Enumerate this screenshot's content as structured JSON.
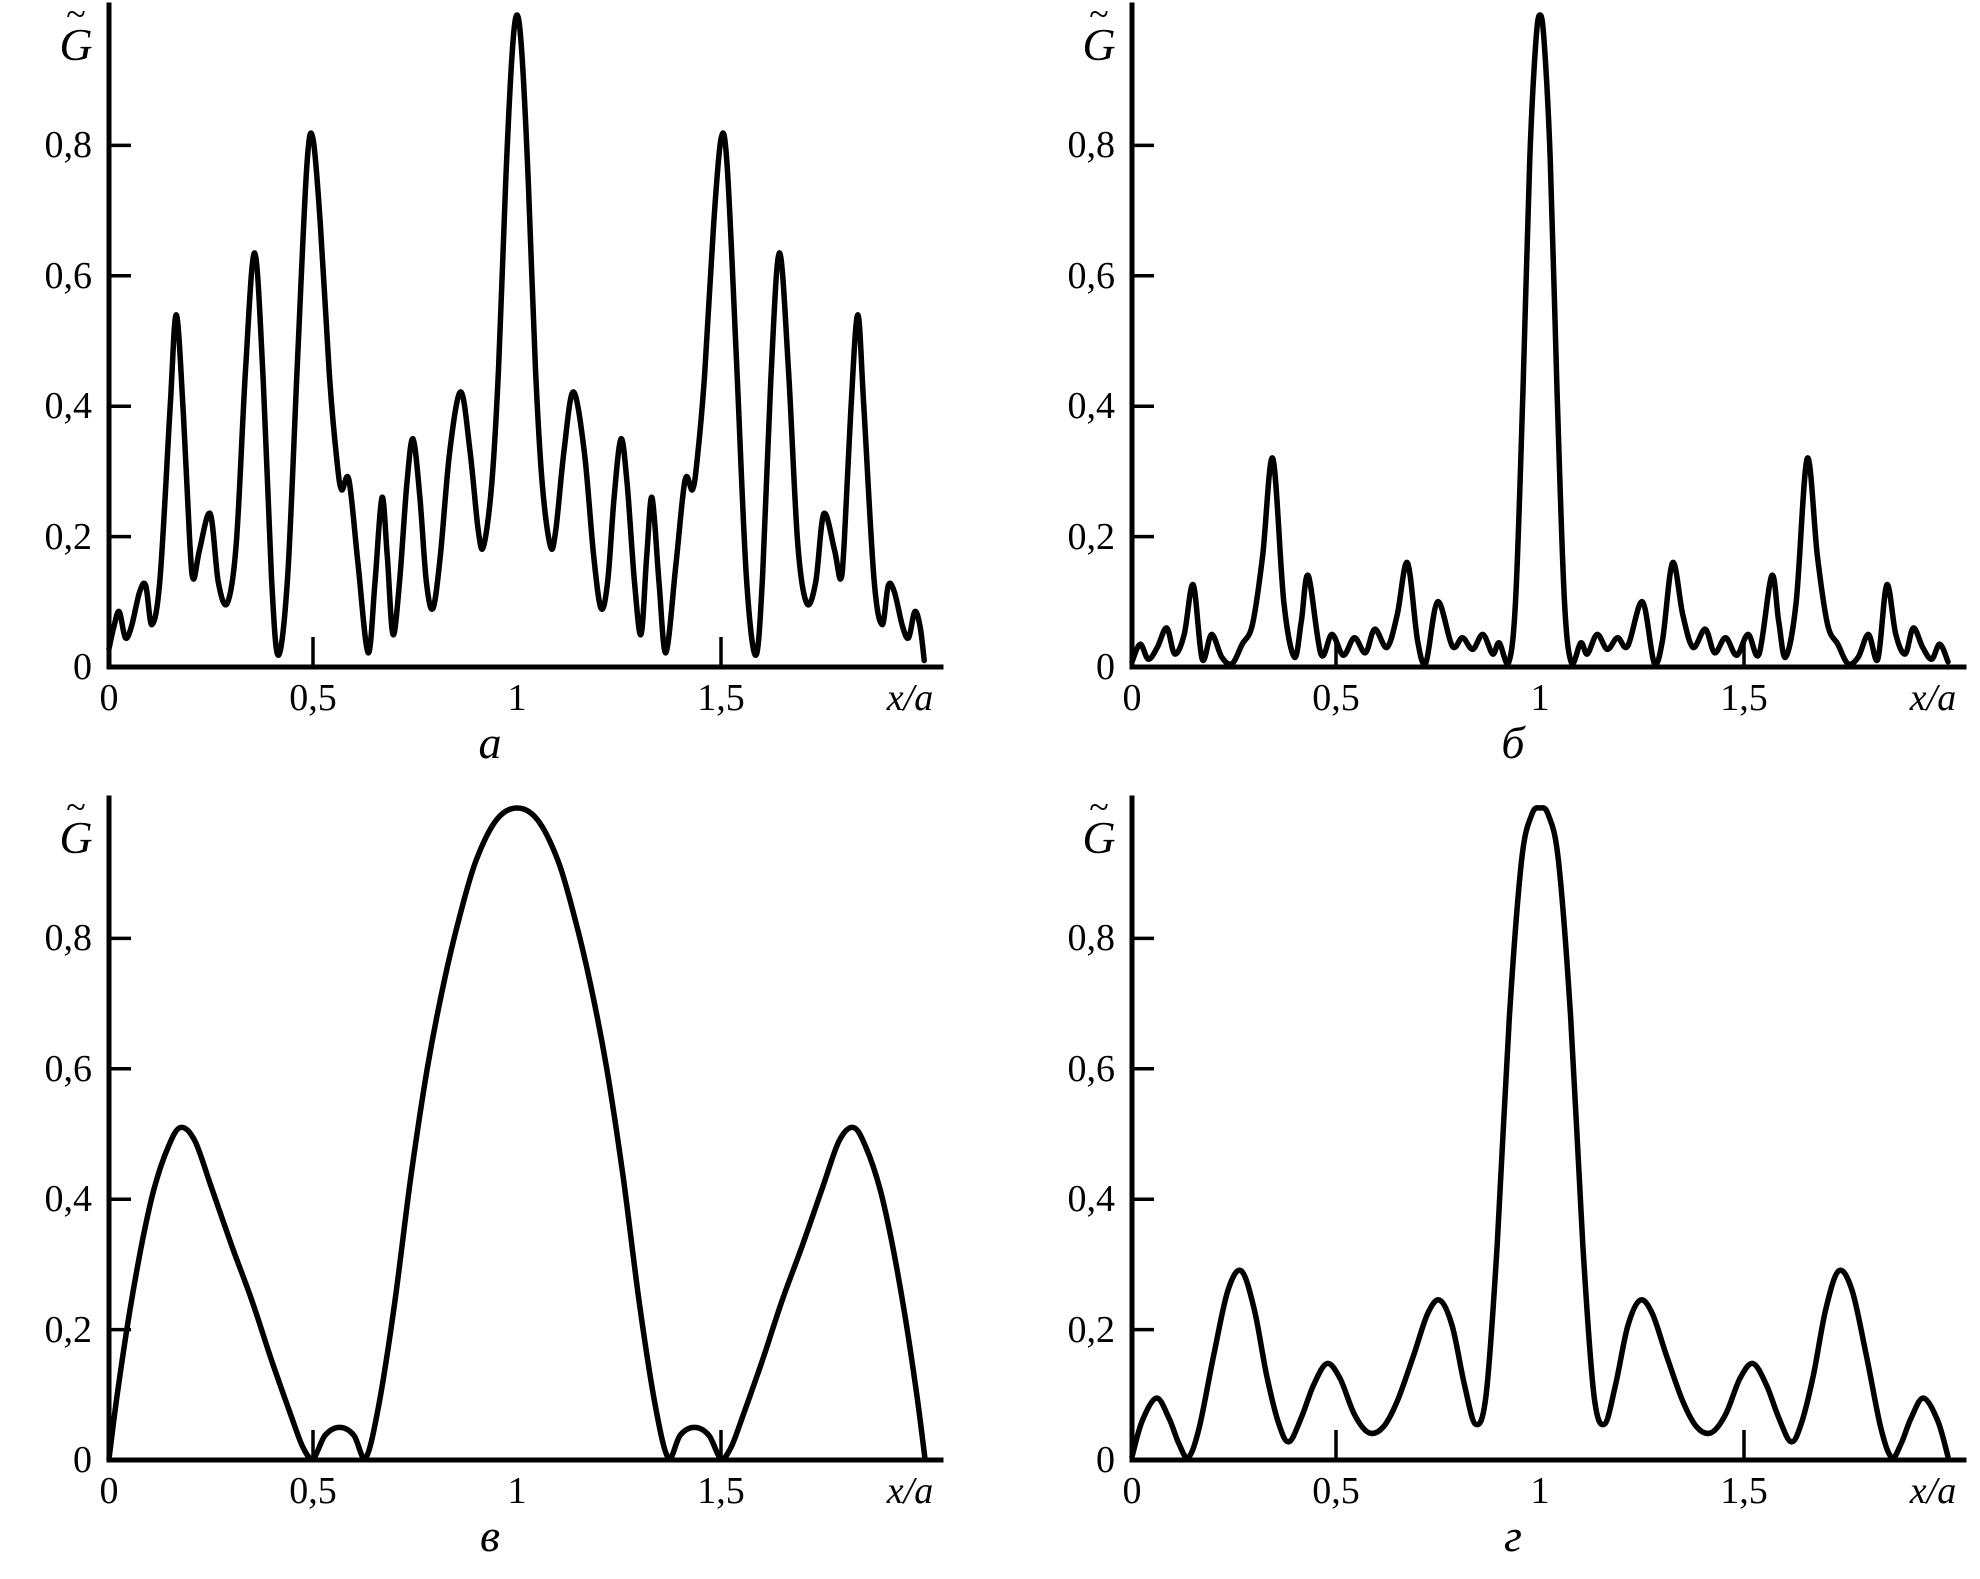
{
  "figure": {
    "background_color": "#ffffff",
    "stroke_color": "#000000",
    "y_axis": {
      "letter": "G",
      "tilde_glyph": "~",
      "tick_labels": [
        "0,2",
        "0,4",
        "0,6",
        "0,8"
      ],
      "zero_label": "0"
    },
    "x_axis": {
      "axis_label": "x/a",
      "tick_labels": [
        "0",
        "0,5",
        "1",
        "1,5"
      ],
      "tick_values": [
        0,
        0.5,
        1,
        1.5
      ]
    }
  },
  "chart_data": [
    {
      "type": "line",
      "caption": "а",
      "xlabel": "x/a",
      "ylabel": "G̃",
      "xlim": [
        0,
        2.04
      ],
      "ylim": [
        0,
        1.02
      ],
      "x_ticks": [
        0,
        0.5,
        1,
        1.5
      ],
      "y_ticks": [
        0.2,
        0.4,
        0.6,
        0.8
      ],
      "grid": false,
      "legend": null,
      "points": [
        [
          0,
          0.028
        ],
        [
          0.012,
          0.062
        ],
        [
          0.025,
          0.085
        ],
        [
          0.04,
          0.045
        ],
        [
          0.055,
          0.062
        ],
        [
          0.075,
          0.115
        ],
        [
          0.09,
          0.125
        ],
        [
          0.105,
          0.065
        ],
        [
          0.125,
          0.135
        ],
        [
          0.15,
          0.4
        ],
        [
          0.165,
          0.54
        ],
        [
          0.182,
          0.39
        ],
        [
          0.198,
          0.19
        ],
        [
          0.207,
          0.135
        ],
        [
          0.222,
          0.18
        ],
        [
          0.248,
          0.235
        ],
        [
          0.268,
          0.13
        ],
        [
          0.29,
          0.098
        ],
        [
          0.312,
          0.19
        ],
        [
          0.335,
          0.46
        ],
        [
          0.357,
          0.635
        ],
        [
          0.378,
          0.44
        ],
        [
          0.398,
          0.14
        ],
        [
          0.415,
          0.018
        ],
        [
          0.438,
          0.14
        ],
        [
          0.462,
          0.47
        ],
        [
          0.485,
          0.77
        ],
        [
          0.5,
          0.81
        ],
        [
          0.518,
          0.68
        ],
        [
          0.54,
          0.45
        ],
        [
          0.558,
          0.32
        ],
        [
          0.57,
          0.272
        ],
        [
          0.588,
          0.287
        ],
        [
          0.61,
          0.16
        ],
        [
          0.635,
          0.022
        ],
        [
          0.652,
          0.13
        ],
        [
          0.669,
          0.26
        ],
        [
          0.682,
          0.17
        ],
        [
          0.696,
          0.05
        ],
        [
          0.712,
          0.13
        ],
        [
          0.73,
          0.28
        ],
        [
          0.745,
          0.35
        ],
        [
          0.762,
          0.26
        ],
        [
          0.778,
          0.13
        ],
        [
          0.794,
          0.09
        ],
        [
          0.812,
          0.17
        ],
        [
          0.835,
          0.33
        ],
        [
          0.862,
          0.422
        ],
        [
          0.885,
          0.33
        ],
        [
          0.905,
          0.21
        ],
        [
          0.918,
          0.185
        ],
        [
          0.938,
          0.28
        ],
        [
          0.955,
          0.46
        ],
        [
          0.972,
          0.74
        ],
        [
          0.988,
          0.94
        ],
        [
          1,
          1
        ],
        [
          1.012,
          0.94
        ],
        [
          1.028,
          0.74
        ],
        [
          1.045,
          0.46
        ],
        [
          1.062,
          0.28
        ],
        [
          1.082,
          0.185
        ],
        [
          1.095,
          0.21
        ],
        [
          1.115,
          0.33
        ],
        [
          1.138,
          0.422
        ],
        [
          1.165,
          0.33
        ],
        [
          1.188,
          0.17
        ],
        [
          1.206,
          0.09
        ],
        [
          1.222,
          0.13
        ],
        [
          1.238,
          0.26
        ],
        [
          1.255,
          0.35
        ],
        [
          1.27,
          0.28
        ],
        [
          1.288,
          0.13
        ],
        [
          1.304,
          0.05
        ],
        [
          1.318,
          0.17
        ],
        [
          1.331,
          0.26
        ],
        [
          1.348,
          0.13
        ],
        [
          1.365,
          0.022
        ],
        [
          1.39,
          0.16
        ],
        [
          1.412,
          0.287
        ],
        [
          1.43,
          0.272
        ],
        [
          1.442,
          0.32
        ],
        [
          1.46,
          0.45
        ],
        [
          1.482,
          0.68
        ],
        [
          1.5,
          0.81
        ],
        [
          1.515,
          0.77
        ],
        [
          1.538,
          0.47
        ],
        [
          1.562,
          0.14
        ],
        [
          1.585,
          0.018
        ],
        [
          1.602,
          0.14
        ],
        [
          1.622,
          0.44
        ],
        [
          1.643,
          0.635
        ],
        [
          1.665,
          0.46
        ],
        [
          1.688,
          0.19
        ],
        [
          1.71,
          0.098
        ],
        [
          1.732,
          0.13
        ],
        [
          1.752,
          0.235
        ],
        [
          1.778,
          0.18
        ],
        [
          1.793,
          0.135
        ],
        [
          1.802,
          0.19
        ],
        [
          1.818,
          0.39
        ],
        [
          1.835,
          0.54
        ],
        [
          1.85,
          0.4
        ],
        [
          1.875,
          0.135
        ],
        [
          1.895,
          0.065
        ],
        [
          1.91,
          0.125
        ],
        [
          1.925,
          0.115
        ],
        [
          1.945,
          0.062
        ],
        [
          1.96,
          0.045
        ],
        [
          1.975,
          0.085
        ],
        [
          1.988,
          0.062
        ],
        [
          1.998,
          0.01
        ]
      ]
    },
    {
      "type": "line",
      "caption": "б",
      "xlabel": "x/a",
      "ylabel": "G̃",
      "xlim": [
        0,
        2.04
      ],
      "ylim": [
        0,
        1.02
      ],
      "x_ticks": [
        0,
        0.5,
        1,
        1.5
      ],
      "y_ticks": [
        0.2,
        0.4,
        0.6,
        0.8
      ],
      "grid": false,
      "legend": null,
      "points": [
        [
          0,
          0.008
        ],
        [
          0.02,
          0.035
        ],
        [
          0.04,
          0.012
        ],
        [
          0.062,
          0.03
        ],
        [
          0.085,
          0.06
        ],
        [
          0.105,
          0.02
        ],
        [
          0.128,
          0.05
        ],
        [
          0.15,
          0.126
        ],
        [
          0.172,
          0.012
        ],
        [
          0.195,
          0.05
        ],
        [
          0.22,
          0.015
        ],
        [
          0.245,
          0.005
        ],
        [
          0.27,
          0.035
        ],
        [
          0.295,
          0.065
        ],
        [
          0.32,
          0.17
        ],
        [
          0.345,
          0.32
        ],
        [
          0.372,
          0.1
        ],
        [
          0.398,
          0.015
        ],
        [
          0.415,
          0.07
        ],
        [
          0.432,
          0.14
        ],
        [
          0.463,
          0.02
        ],
        [
          0.49,
          0.05
        ],
        [
          0.518,
          0.018
        ],
        [
          0.545,
          0.045
        ],
        [
          0.572,
          0.022
        ],
        [
          0.595,
          0.058
        ],
        [
          0.625,
          0.03
        ],
        [
          0.65,
          0.08
        ],
        [
          0.675,
          0.16
        ],
        [
          0.7,
          0.04
        ],
        [
          0.72,
          0.006
        ],
        [
          0.749,
          0.1
        ],
        [
          0.785,
          0.032
        ],
        [
          0.81,
          0.045
        ],
        [
          0.835,
          0.027
        ],
        [
          0.86,
          0.05
        ],
        [
          0.884,
          0.02
        ],
        [
          0.9,
          0.037
        ],
        [
          0.922,
          0.005
        ],
        [
          0.94,
          0.1
        ],
        [
          0.958,
          0.42
        ],
        [
          0.975,
          0.78
        ],
        [
          0.99,
          0.96
        ],
        [
          1,
          1
        ],
        [
          1.01,
          0.96
        ],
        [
          1.025,
          0.78
        ],
        [
          1.042,
          0.42
        ],
        [
          1.06,
          0.1
        ],
        [
          1.078,
          0.005
        ],
        [
          1.1,
          0.037
        ],
        [
          1.116,
          0.02
        ],
        [
          1.14,
          0.05
        ],
        [
          1.165,
          0.027
        ],
        [
          1.19,
          0.045
        ],
        [
          1.215,
          0.032
        ],
        [
          1.251,
          0.1
        ],
        [
          1.28,
          0.006
        ],
        [
          1.3,
          0.04
        ],
        [
          1.325,
          0.16
        ],
        [
          1.35,
          0.08
        ],
        [
          1.375,
          0.03
        ],
        [
          1.405,
          0.058
        ],
        [
          1.428,
          0.022
        ],
        [
          1.455,
          0.045
        ],
        [
          1.482,
          0.018
        ],
        [
          1.51,
          0.05
        ],
        [
          1.537,
          0.02
        ],
        [
          1.568,
          0.14
        ],
        [
          1.585,
          0.07
        ],
        [
          1.602,
          0.015
        ],
        [
          1.628,
          0.1
        ],
        [
          1.655,
          0.32
        ],
        [
          1.68,
          0.17
        ],
        [
          1.705,
          0.065
        ],
        [
          1.73,
          0.035
        ],
        [
          1.755,
          0.005
        ],
        [
          1.78,
          0.015
        ],
        [
          1.805,
          0.05
        ],
        [
          1.828,
          0.012
        ],
        [
          1.85,
          0.126
        ],
        [
          1.872,
          0.05
        ],
        [
          1.895,
          0.02
        ],
        [
          1.915,
          0.06
        ],
        [
          1.938,
          0.03
        ],
        [
          1.96,
          0.012
        ],
        [
          1.98,
          0.035
        ],
        [
          2,
          0.008
        ]
      ]
    },
    {
      "type": "line",
      "caption": "в",
      "xlabel": "x/a",
      "ylabel": "G̃",
      "xlim": [
        0,
        2.04
      ],
      "ylim": [
        0,
        1.02
      ],
      "x_ticks": [
        0,
        0.5,
        1,
        1.5
      ],
      "y_ticks": [
        0.2,
        0.4,
        0.6,
        0.8
      ],
      "grid": false,
      "legend": null,
      "points": [
        [
          0,
          0.002
        ],
        [
          0.02,
          0.1
        ],
        [
          0.05,
          0.225
        ],
        [
          0.08,
          0.33
        ],
        [
          0.11,
          0.415
        ],
        [
          0.145,
          0.48
        ],
        [
          0.175,
          0.51
        ],
        [
          0.21,
          0.49
        ],
        [
          0.25,
          0.42
        ],
        [
          0.3,
          0.33
        ],
        [
          0.35,
          0.245
        ],
        [
          0.4,
          0.15
        ],
        [
          0.445,
          0.07
        ],
        [
          0.475,
          0.02
        ],
        [
          0.5,
          0.002
        ],
        [
          0.53,
          0.038
        ],
        [
          0.565,
          0.05
        ],
        [
          0.6,
          0.038
        ],
        [
          0.628,
          0.002
        ],
        [
          0.66,
          0.08
        ],
        [
          0.7,
          0.24
        ],
        [
          0.74,
          0.435
        ],
        [
          0.78,
          0.6
        ],
        [
          0.82,
          0.73
        ],
        [
          0.86,
          0.835
        ],
        [
          0.9,
          0.92
        ],
        [
          0.95,
          0.982
        ],
        [
          1,
          1
        ],
        [
          1.05,
          0.982
        ],
        [
          1.1,
          0.92
        ],
        [
          1.14,
          0.835
        ],
        [
          1.18,
          0.73
        ],
        [
          1.22,
          0.6
        ],
        [
          1.26,
          0.435
        ],
        [
          1.3,
          0.24
        ],
        [
          1.34,
          0.08
        ],
        [
          1.372,
          0.002
        ],
        [
          1.4,
          0.038
        ],
        [
          1.435,
          0.05
        ],
        [
          1.47,
          0.038
        ],
        [
          1.5,
          0.002
        ],
        [
          1.525,
          0.02
        ],
        [
          1.555,
          0.07
        ],
        [
          1.6,
          0.15
        ],
        [
          1.65,
          0.245
        ],
        [
          1.7,
          0.33
        ],
        [
          1.75,
          0.42
        ],
        [
          1.79,
          0.49
        ],
        [
          1.825,
          0.51
        ],
        [
          1.855,
          0.48
        ],
        [
          1.89,
          0.415
        ],
        [
          1.92,
          0.33
        ],
        [
          1.95,
          0.225
        ],
        [
          1.98,
          0.1
        ],
        [
          2,
          0.002
        ]
      ]
    },
    {
      "type": "line",
      "caption": "г",
      "xlabel": "x/a",
      "ylabel": "G̃",
      "xlim": [
        0,
        2.04
      ],
      "ylim": [
        0,
        1.02
      ],
      "x_ticks": [
        0,
        0.5,
        1,
        1.5
      ],
      "y_ticks": [
        0.2,
        0.4,
        0.6,
        0.8
      ],
      "grid": false,
      "legend": null,
      "points": [
        [
          0,
          0.005
        ],
        [
          0.025,
          0.06
        ],
        [
          0.06,
          0.095
        ],
        [
          0.09,
          0.065
        ],
        [
          0.115,
          0.025
        ],
        [
          0.138,
          0.004
        ],
        [
          0.165,
          0.05
        ],
        [
          0.2,
          0.16
        ],
        [
          0.235,
          0.26
        ],
        [
          0.268,
          0.29
        ],
        [
          0.3,
          0.23
        ],
        [
          0.33,
          0.13
        ],
        [
          0.36,
          0.055
        ],
        [
          0.385,
          0.028
        ],
        [
          0.415,
          0.065
        ],
        [
          0.445,
          0.115
        ],
        [
          0.478,
          0.148
        ],
        [
          0.51,
          0.125
        ],
        [
          0.545,
          0.07
        ],
        [
          0.58,
          0.042
        ],
        [
          0.615,
          0.05
        ],
        [
          0.65,
          0.09
        ],
        [
          0.69,
          0.16
        ],
        [
          0.725,
          0.225
        ],
        [
          0.755,
          0.245
        ],
        [
          0.785,
          0.205
        ],
        [
          0.815,
          0.115
        ],
        [
          0.842,
          0.055
        ],
        [
          0.868,
          0.1
        ],
        [
          0.895,
          0.33
        ],
        [
          0.925,
          0.68
        ],
        [
          0.955,
          0.92
        ],
        [
          0.98,
          0.99
        ],
        [
          1,
          1
        ],
        [
          1.02,
          0.99
        ],
        [
          1.045,
          0.92
        ],
        [
          1.075,
          0.68
        ],
        [
          1.105,
          0.33
        ],
        [
          1.132,
          0.1
        ],
        [
          1.158,
          0.055
        ],
        [
          1.185,
          0.115
        ],
        [
          1.215,
          0.205
        ],
        [
          1.245,
          0.245
        ],
        [
          1.275,
          0.225
        ],
        [
          1.31,
          0.16
        ],
        [
          1.35,
          0.09
        ],
        [
          1.385,
          0.05
        ],
        [
          1.42,
          0.042
        ],
        [
          1.455,
          0.07
        ],
        [
          1.49,
          0.125
        ],
        [
          1.522,
          0.148
        ],
        [
          1.555,
          0.115
        ],
        [
          1.585,
          0.065
        ],
        [
          1.615,
          0.028
        ],
        [
          1.64,
          0.055
        ],
        [
          1.67,
          0.13
        ],
        [
          1.7,
          0.23
        ],
        [
          1.732,
          0.29
        ],
        [
          1.765,
          0.26
        ],
        [
          1.8,
          0.16
        ],
        [
          1.835,
          0.05
        ],
        [
          1.862,
          0.004
        ],
        [
          1.885,
          0.025
        ],
        [
          1.91,
          0.065
        ],
        [
          1.94,
          0.095
        ],
        [
          1.975,
          0.06
        ],
        [
          2,
          0.005
        ]
      ]
    }
  ]
}
